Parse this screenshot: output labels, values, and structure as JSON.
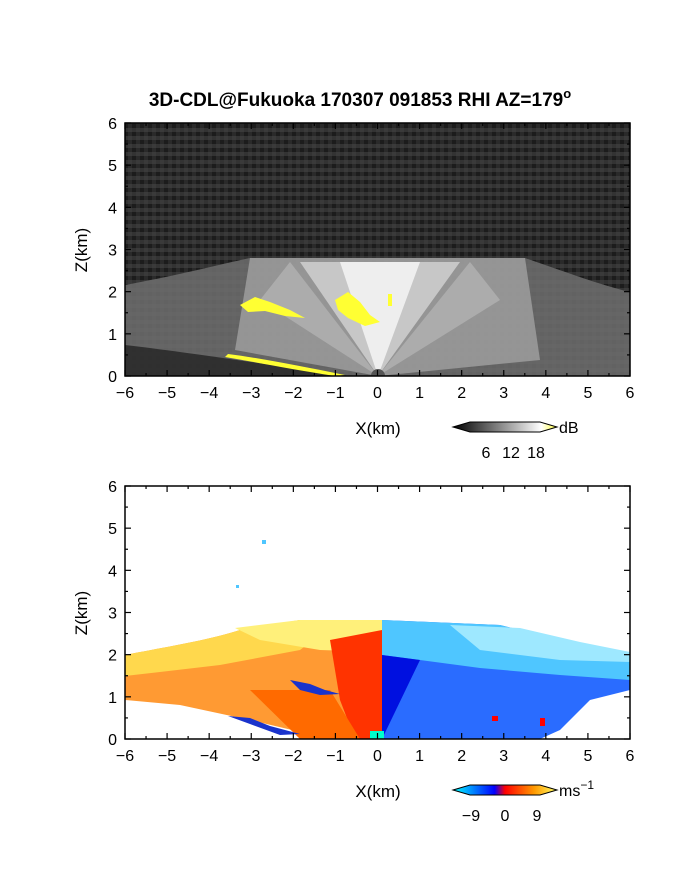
{
  "title": "3D-CDL@Fukuoka 170307 091853 RHI AZ=179",
  "title_superscript": "o",
  "chart_data": [
    {
      "name": "reflectivity",
      "type": "heatmap",
      "xlabel": "X(km)",
      "ylabel": "Z(km)",
      "xlim": [
        -6,
        6
      ],
      "ylim": [
        0,
        6
      ],
      "xticks": [
        "−6",
        "−5",
        "−4",
        "−3",
        "−2",
        "−1",
        "0",
        "1",
        "2",
        "3",
        "4",
        "5",
        "6"
      ],
      "yticks": [
        "0",
        "1",
        "2",
        "3",
        "4",
        "5",
        "6"
      ],
      "colorbar": {
        "unit": "dB",
        "ticks": [
          "6",
          "12",
          "18"
        ],
        "colors": [
          "#000000",
          "#ffffff",
          "#ffff33"
        ]
      }
    },
    {
      "name": "doppler_velocity",
      "type": "heatmap",
      "xlabel": "X(km)",
      "ylabel": "Z(km)",
      "xlim": [
        -6,
        6
      ],
      "ylim": [
        0,
        6
      ],
      "xticks": [
        "−6",
        "−5",
        "−4",
        "−3",
        "−2",
        "−1",
        "0",
        "1",
        "2",
        "3",
        "4",
        "5",
        "6"
      ],
      "yticks": [
        "0",
        "1",
        "2",
        "3",
        "4",
        "5",
        "6"
      ],
      "colorbar": {
        "unit": "ms",
        "unit_exponent": "−1",
        "ticks": [
          "−9",
          "0",
          "9"
        ],
        "colors": [
          "#00ffff",
          "#0000ff",
          "#ff0000",
          "#ffff66"
        ]
      }
    }
  ]
}
